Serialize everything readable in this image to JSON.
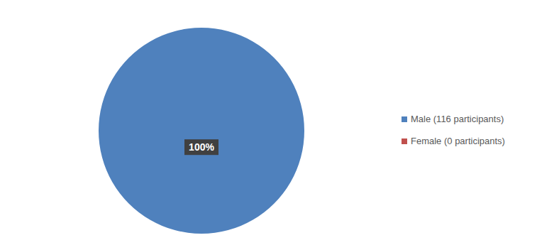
{
  "chart_data": {
    "type": "pie",
    "categories": [
      "Male (116 participants)",
      "Female (0 participants)"
    ],
    "values": [
      100,
      0
    ],
    "value_labels": [
      "100%",
      null
    ],
    "data_labels": true,
    "colors": [
      "#4f81bd",
      "#c0504d"
    ],
    "legend": "right"
  }
}
